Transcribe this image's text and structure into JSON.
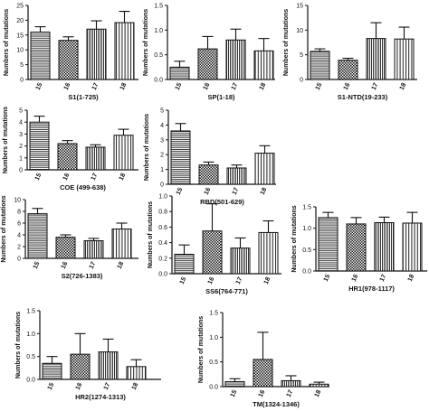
{
  "colors": {
    "ink": "#111111",
    "background": "#ffffff"
  },
  "chart_data": [
    {
      "type": "bar",
      "title": "S1(1-725)",
      "ylabel": "Numbers of mutations",
      "categories": [
        "15",
        "16",
        "17",
        "18"
      ],
      "values": [
        16,
        13.2,
        17,
        19.2
      ],
      "errors": [
        1.8,
        1.2,
        2.8,
        3.8
      ],
      "ylim": [
        0,
        25
      ],
      "yticks": [
        0,
        5,
        10,
        15,
        20,
        25
      ],
      "patterns": [
        "hlines",
        "checker",
        "dense-vlines",
        "vlines"
      ]
    },
    {
      "type": "bar",
      "title": "SP(1-18)",
      "ylabel": "Numbers of mutations",
      "categories": [
        "15",
        "16",
        "17",
        "18"
      ],
      "values": [
        0.25,
        0.62,
        0.8,
        0.58
      ],
      "errors": [
        0.12,
        0.25,
        0.22,
        0.25
      ],
      "ylim": [
        0,
        1.5
      ],
      "yticks": [
        0.0,
        0.5,
        1.0,
        1.5
      ],
      "patterns": [
        "hlines",
        "checker",
        "dense-vlines",
        "vlines"
      ]
    },
    {
      "type": "bar",
      "title": "S1-NTD(19-233)",
      "ylabel": "Numbers of mutations",
      "categories": [
        "15",
        "16",
        "17",
        "18"
      ],
      "values": [
        5.7,
        3.9,
        8.3,
        8.2
      ],
      "errors": [
        0.5,
        0.4,
        3.2,
        2.4
      ],
      "ylim": [
        0,
        15
      ],
      "yticks": [
        0,
        5,
        10,
        15
      ],
      "patterns": [
        "hlines",
        "checker",
        "dense-vlines",
        "vlines"
      ]
    },
    {
      "type": "bar",
      "title": "COE (499-638)",
      "ylabel": "Numbers of mutations",
      "categories": [
        "15",
        "16",
        "17",
        "18"
      ],
      "values": [
        4.0,
        2.2,
        1.9,
        2.9
      ],
      "errors": [
        0.5,
        0.25,
        0.2,
        0.5
      ],
      "ylim": [
        0,
        5
      ],
      "yticks": [
        0,
        1,
        2,
        3,
        4,
        5
      ],
      "patterns": [
        "hlines",
        "checker",
        "dense-vlines",
        "vlines"
      ]
    },
    {
      "type": "bar",
      "title": "RBD(501-629)",
      "ylabel": "Numbers of mutations",
      "categories": [
        "15",
        "16",
        "17",
        "18"
      ],
      "values": [
        3.6,
        1.3,
        1.1,
        2.1
      ],
      "errors": [
        0.5,
        0.2,
        0.2,
        0.5
      ],
      "ylim": [
        0,
        5
      ],
      "yticks": [
        0,
        1,
        2,
        3,
        4,
        5
      ],
      "patterns": [
        "hlines",
        "checker",
        "dense-vlines",
        "vlines"
      ]
    },
    {
      "type": "bar",
      "title": "S2(726-1383)",
      "ylabel": "Numbers of mutations",
      "categories": [
        "15",
        "16",
        "17",
        "18"
      ],
      "values": [
        7.6,
        3.6,
        3.0,
        5.0
      ],
      "errors": [
        0.9,
        0.4,
        0.4,
        1.0
      ],
      "ylim": [
        0,
        10
      ],
      "yticks": [
        0,
        2,
        4,
        6,
        8,
        10
      ],
      "patterns": [
        "hlines",
        "checker",
        "dense-vlines",
        "vlines"
      ]
    },
    {
      "type": "bar",
      "title": "SS6(764-771)",
      "ylabel": "Numbers of mutations",
      "categories": [
        "15",
        "16",
        "17",
        "18"
      ],
      "values": [
        0.25,
        0.55,
        0.33,
        0.53
      ],
      "errors": [
        0.12,
        0.35,
        0.13,
        0.15
      ],
      "ylim": [
        0,
        1.0
      ],
      "yticks": [
        0.0,
        0.2,
        0.4,
        0.6,
        0.8,
        1.0
      ],
      "patterns": [
        "hlines",
        "checker",
        "dense-vlines",
        "vlines"
      ]
    },
    {
      "type": "bar",
      "title": "HR1(978-1117)",
      "ylabel": "Numbers of mutations",
      "categories": [
        "15",
        "16",
        "17",
        "18"
      ],
      "values": [
        1.25,
        1.1,
        1.13,
        1.12
      ],
      "errors": [
        0.12,
        0.15,
        0.13,
        0.25
      ],
      "ylim": [
        0,
        1.5
      ],
      "yticks": [
        0.0,
        0.5,
        1.0,
        1.5
      ],
      "patterns": [
        "hlines",
        "checker",
        "dense-vlines",
        "vlines"
      ]
    },
    {
      "type": "bar",
      "title": "HR2(1274-1313)",
      "ylabel": "Numbers of mutations",
      "categories": [
        "15",
        "16",
        "17",
        "18"
      ],
      "values": [
        0.35,
        0.55,
        0.6,
        0.28
      ],
      "errors": [
        0.15,
        0.45,
        0.28,
        0.15
      ],
      "ylim": [
        0,
        1.5
      ],
      "yticks": [
        0.0,
        0.5,
        1.0,
        1.5
      ],
      "patterns": [
        "hlines",
        "checker",
        "dense-vlines",
        "vlines"
      ]
    },
    {
      "type": "bar",
      "title": "TM(1324-1346)",
      "ylabel": "Numbers of mutations",
      "categories": [
        "15",
        "16",
        "17",
        "18"
      ],
      "values": [
        0.1,
        0.55,
        0.12,
        0.05
      ],
      "errors": [
        0.06,
        0.55,
        0.1,
        0.04
      ],
      "ylim": [
        0,
        1.5
      ],
      "yticks": [
        0.0,
        0.5,
        1.0,
        1.5
      ],
      "patterns": [
        "hlines",
        "checker",
        "dense-vlines",
        "vlines"
      ]
    }
  ]
}
